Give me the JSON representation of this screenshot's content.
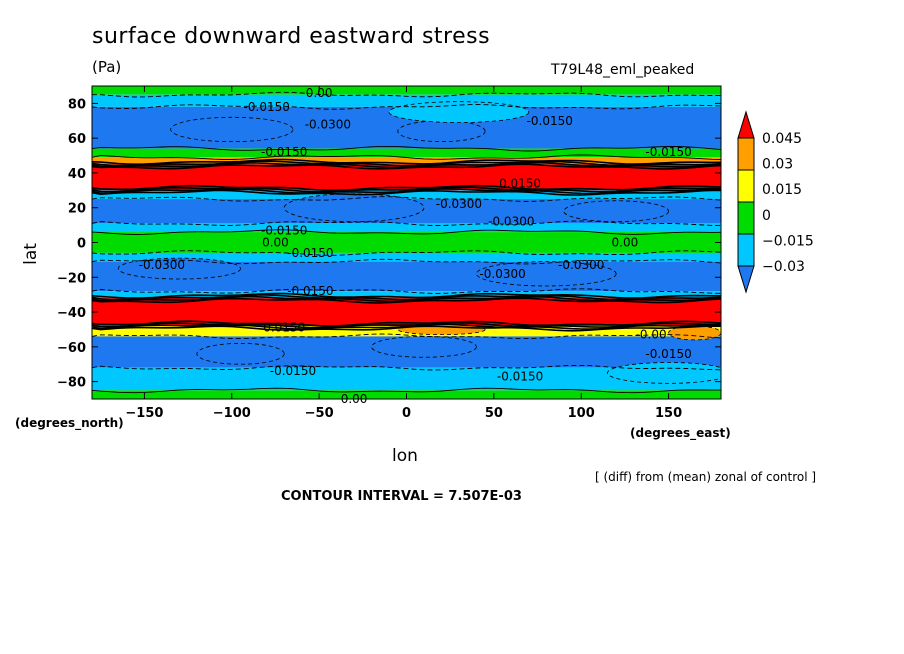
{
  "chart_data": {
    "type": "heatmap",
    "title": "surface downward eastward stress",
    "units": "(Pa)",
    "run_label": "T79L48_eml_peaked",
    "xlabel": "lon",
    "ylabel": "lat",
    "x_unit_note": "(degrees_east)",
    "y_unit_note": "(degrees_north)",
    "footnote": "[ (diff) from (mean) zonal of control ]",
    "contour_interval": "CONTOUR INTERVAL = 7.507E-03",
    "xlim": [
      -180,
      180
    ],
    "ylim": [
      -90,
      90
    ],
    "x_ticks": [
      "−150",
      "−100",
      "−50",
      "0",
      "50",
      "100",
      "150"
    ],
    "x_tick_values": [
      -150,
      -100,
      -50,
      0,
      50,
      100,
      150
    ],
    "y_ticks": [
      "80",
      "60",
      "40",
      "20",
      "0",
      "−20",
      "−40",
      "−60",
      "−80"
    ],
    "y_tick_values": [
      80,
      60,
      40,
      20,
      0,
      -20,
      -40,
      -60,
      -80
    ],
    "colorbar": {
      "labels": [
        "0.045",
        "0.03",
        "0.015",
        "0",
        "−0.015",
        "−0.03"
      ],
      "colors": [
        "#1e78f0",
        "#00c8ff",
        "#00dc00",
        "#ffff00",
        "#ffa000",
        "#ff0000"
      ]
    },
    "lat_bands": [
      {
        "lat0": 90,
        "lat1": 85,
        "level": 2
      },
      {
        "lat0": 85,
        "lat1": 78,
        "level": 1
      },
      {
        "lat0": 78,
        "lat1": 54,
        "level": 0
      },
      {
        "lat0": 54,
        "lat1": 49,
        "level": 2
      },
      {
        "lat0": 49,
        "lat1": 45,
        "level": 4
      },
      {
        "lat0": 45,
        "lat1": 30,
        "level": 5
      },
      {
        "lat0": 30,
        "lat1": 25,
        "level": 1
      },
      {
        "lat0": 25,
        "lat1": 11,
        "level": 0
      },
      {
        "lat0": 11,
        "lat1": 6,
        "level": 1
      },
      {
        "lat0": 6,
        "lat1": -6,
        "level": 2
      },
      {
        "lat0": -6,
        "lat1": -11,
        "level": 1
      },
      {
        "lat0": -11,
        "lat1": -28,
        "level": 0
      },
      {
        "lat0": -28,
        "lat1": -32,
        "level": 1
      },
      {
        "lat0": -32,
        "lat1": -48,
        "level": 5
      },
      {
        "lat0": -48,
        "lat1": -54,
        "level": 3
      },
      {
        "lat0": -54,
        "lat1": -72,
        "level": 0
      },
      {
        "lat0": -72,
        "lat1": -85,
        "level": 1
      },
      {
        "lat0": -85,
        "lat1": -90,
        "level": 2
      }
    ],
    "patches": [
      {
        "lon": -100,
        "lat": 65,
        "rlon": 35,
        "rlat": 7,
        "level": 0
      },
      {
        "lon": 20,
        "lat": 64,
        "rlon": 25,
        "rlat": 6,
        "level": 0
      },
      {
        "lon": -30,
        "lat": 20,
        "rlon": 40,
        "rlat": 8,
        "level": 0
      },
      {
        "lon": 120,
        "lat": 18,
        "rlon": 30,
        "rlat": 6,
        "level": 0
      },
      {
        "lon": -130,
        "lat": -15,
        "rlon": 35,
        "rlat": 6,
        "level": 0
      },
      {
        "lon": 80,
        "lat": -18,
        "rlon": 40,
        "rlat": 7,
        "level": 0
      },
      {
        "lon": -95,
        "lat": -64,
        "rlon": 25,
        "rlat": 6,
        "level": 0
      },
      {
        "lon": 10,
        "lat": -60,
        "rlon": 30,
        "rlat": 6,
        "level": 0
      },
      {
        "lon": 30,
        "lat": 75,
        "rlon": 40,
        "rlat": 6,
        "level": 1
      },
      {
        "lon": 150,
        "lat": -75,
        "rlon": 35,
        "rlat": 6,
        "level": 1
      },
      {
        "lon": 20,
        "lat": -50,
        "rlon": 25,
        "rlat": 3,
        "level": 4
      },
      {
        "lon": 165,
        "lat": -52,
        "rlon": 15,
        "rlat": 4,
        "level": 4
      }
    ],
    "contour_labels": [
      {
        "text": "0.00",
        "lon": -50,
        "lat": 86
      },
      {
        "text": "-0.0150",
        "lon": -80,
        "lat": 78
      },
      {
        "text": "-0.0300",
        "lon": -45,
        "lat": 68
      },
      {
        "text": "-0.0150",
        "lon": 82,
        "lat": 70
      },
      {
        "text": "-0.0150",
        "lon": -70,
        "lat": 52
      },
      {
        "text": "-0.0150",
        "lon": 150,
        "lat": 52
      },
      {
        "text": "0.0150",
        "lon": 65,
        "lat": 34
      },
      {
        "text": "-0.0300",
        "lon": 30,
        "lat": 22
      },
      {
        "text": "-0.0300",
        "lon": 60,
        "lat": 12
      },
      {
        "text": "-0.0150",
        "lon": -70,
        "lat": 7
      },
      {
        "text": "0.00",
        "lon": -75,
        "lat": 0
      },
      {
        "text": "0.00",
        "lon": 125,
        "lat": 0
      },
      {
        "text": "-0.0150",
        "lon": -55,
        "lat": -6
      },
      {
        "text": "-0.0300",
        "lon": -140,
        "lat": -13
      },
      {
        "text": "-0.0300",
        "lon": 55,
        "lat": -18
      },
      {
        "text": "-0.0300",
        "lon": 100,
        "lat": -13
      },
      {
        "text": "-0.0150",
        "lon": -55,
        "lat": -28
      },
      {
        "text": "0.0150",
        "lon": -70,
        "lat": -49
      },
      {
        "text": "-0.00",
        "lon": 140,
        "lat": -53
      },
      {
        "text": "-0.0150",
        "lon": 150,
        "lat": -64
      },
      {
        "text": "-0.0150",
        "lon": -65,
        "lat": -74
      },
      {
        "text": "-0.0150",
        "lon": 65,
        "lat": -77
      },
      {
        "text": "0.00",
        "lon": -30,
        "lat": -90
      }
    ]
  }
}
